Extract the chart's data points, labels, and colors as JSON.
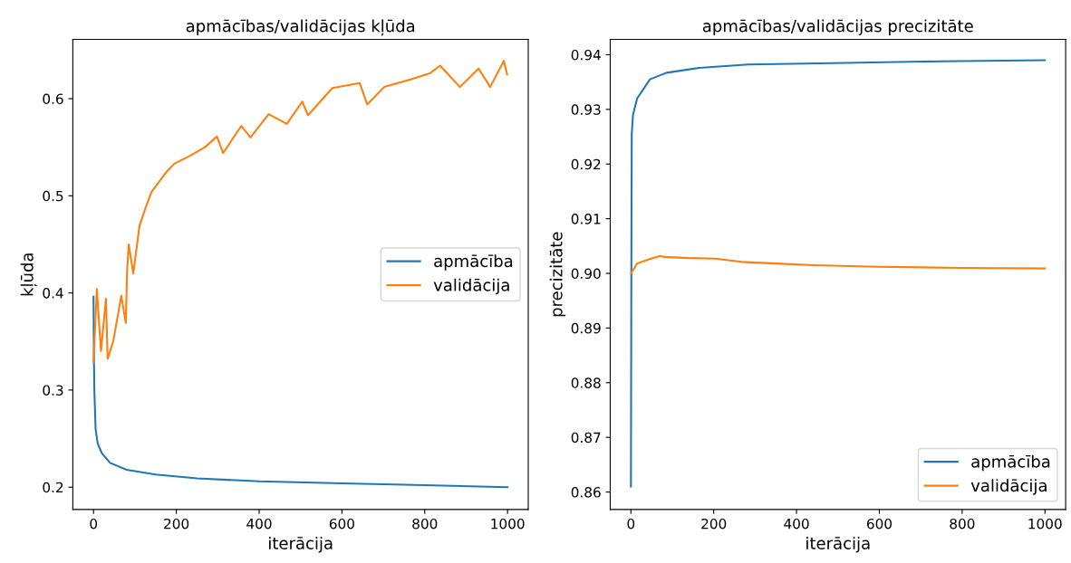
{
  "chart_data": [
    {
      "type": "line",
      "title": "apmācības/validācijas kļūda",
      "xlabel": "iterācija",
      "ylabel": "kļūda",
      "xlim": [
        -50,
        1050
      ],
      "xticks": [
        0,
        200,
        400,
        600,
        800,
        1000
      ],
      "ylim": [
        0.177,
        0.661
      ],
      "yticks": [
        0.2,
        0.3,
        0.4,
        0.5,
        0.6
      ],
      "grid": false,
      "legend": "right",
      "marker": "none",
      "line_style": "solid",
      "series": [
        {
          "name": "apmācība",
          "color": "#1f77b4",
          "x": [
            0,
            1,
            2,
            5,
            10,
            20,
            40,
            80,
            150,
            250,
            400,
            600,
            800,
            1000
          ],
          "values": [
            0.396,
            0.33,
            0.3,
            0.26,
            0.245,
            0.235,
            0.225,
            0.218,
            0.213,
            0.209,
            0.206,
            0.204,
            0.202,
            0.2
          ]
        },
        {
          "name": "validācija",
          "color": "#ff7f0e",
          "x": [
            0,
            8,
            18,
            30,
            34,
            48,
            67,
            78,
            81,
            85,
            96,
            111,
            126,
            140,
            177,
            195,
            232,
            269,
            298,
            313,
            357,
            379,
            423,
            467,
            504,
            518,
            577,
            643,
            661,
            702,
            768,
            812,
            837,
            885,
            930,
            958,
            991,
            999
          ],
          "values": [
            0.329,
            0.404,
            0.34,
            0.394,
            0.332,
            0.351,
            0.397,
            0.369,
            0.422,
            0.45,
            0.42,
            0.469,
            0.488,
            0.504,
            0.525,
            0.533,
            0.541,
            0.55,
            0.561,
            0.544,
            0.572,
            0.56,
            0.584,
            0.574,
            0.597,
            0.583,
            0.611,
            0.616,
            0.594,
            0.612,
            0.62,
            0.626,
            0.634,
            0.612,
            0.631,
            0.612,
            0.639,
            0.625
          ]
        }
      ]
    },
    {
      "type": "line",
      "title": "apmācības/validācijas precizitāte",
      "xlabel": "iterācija",
      "ylabel": "precizitāte",
      "xlim": [
        -50,
        1050
      ],
      "xticks": [
        0,
        200,
        400,
        600,
        800,
        1000
      ],
      "ylim": [
        0.8568,
        0.9428
      ],
      "yticks": [
        0.86,
        0.87,
        0.88,
        0.89,
        {
          "value": 0.9,
          "label": "0.90"
        },
        0.91,
        0.92,
        0.93,
        0.94
      ],
      "grid": false,
      "legend": "bottom right",
      "marker": "none",
      "line_style": "solid",
      "series": [
        {
          "name": "apmācība",
          "color": "#1f77b4",
          "x": [
            0,
            1,
            2,
            5,
            15,
            46,
            86,
            165,
            283,
            519,
            750,
            1000
          ],
          "values": [
            0.861,
            0.9,
            0.9255,
            0.929,
            0.932,
            0.9355,
            0.9367,
            0.9376,
            0.9382,
            0.9385,
            0.9388,
            0.939
          ]
        },
        {
          "name": "validācija",
          "color": "#ff7f0e",
          "x": [
            0,
            15,
            40,
            71,
            80,
            140,
            204,
            267,
            350,
            441,
            598,
            800,
            1000
          ],
          "values": [
            0.9,
            0.9018,
            0.9025,
            0.9032,
            0.903,
            0.9028,
            0.9027,
            0.9021,
            0.9018,
            0.9015,
            0.9012,
            0.901,
            0.9009
          ]
        }
      ]
    }
  ]
}
